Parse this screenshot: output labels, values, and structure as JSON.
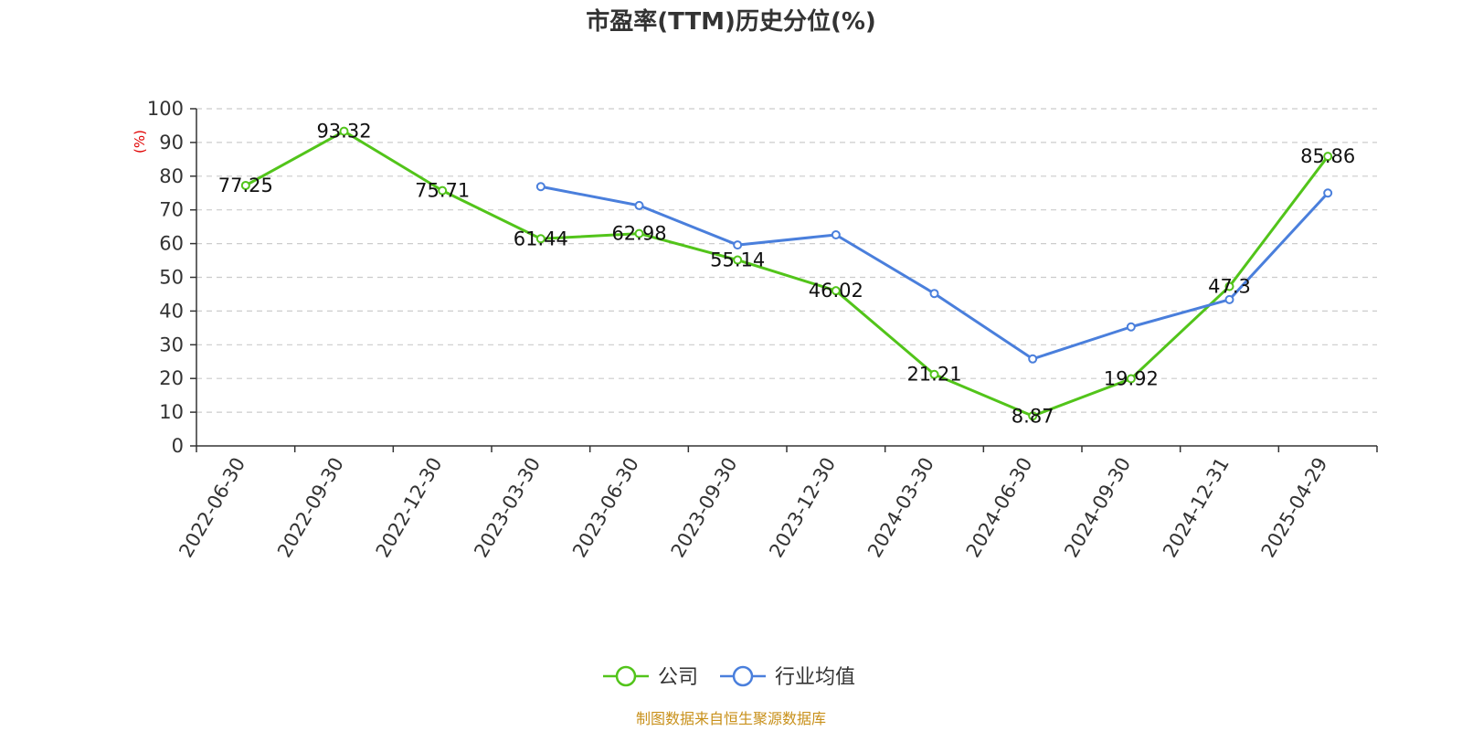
{
  "chart_data": {
    "type": "line",
    "title": "市盈率(TTM)历史分位(%)",
    "ylabel": "(%)",
    "ylim": [
      0,
      100
    ],
    "yticks": [
      0,
      10,
      20,
      30,
      40,
      50,
      60,
      70,
      80,
      90,
      100
    ],
    "grid": true,
    "legend_position": "bottom-center",
    "categories": [
      "2022-06-30",
      "2022-09-30",
      "2022-12-30",
      "2023-03-30",
      "2023-06-30",
      "2023-09-30",
      "2023-12-30",
      "2024-03-30",
      "2024-06-30",
      "2024-09-30",
      "2024-12-31",
      "2025-04-29"
    ],
    "series": [
      {
        "name": "公司",
        "color": "#52c41a",
        "values": [
          77.25,
          93.32,
          75.71,
          61.44,
          62.98,
          55.14,
          46.02,
          21.21,
          8.87,
          19.92,
          47.3,
          85.86
        ],
        "labels": [
          "77.25",
          "93.32",
          "75.71",
          "61.44",
          "62.98",
          "55.14",
          "46.02",
          "21.21",
          "8.87",
          "19.92",
          "47.3",
          "85.86"
        ]
      },
      {
        "name": "行业均值",
        "color": "#4a7fdc",
        "values": [
          null,
          null,
          null,
          76.9,
          71.3,
          59.6,
          62.6,
          45.2,
          25.8,
          35.3,
          43.4,
          75.0
        ]
      }
    ]
  },
  "source_note": "制图数据来自恒生聚源数据库",
  "colors": {
    "axis": "#333333",
    "grid": "#cccccc",
    "unit": "#e00000",
    "source": "#c8901a"
  }
}
